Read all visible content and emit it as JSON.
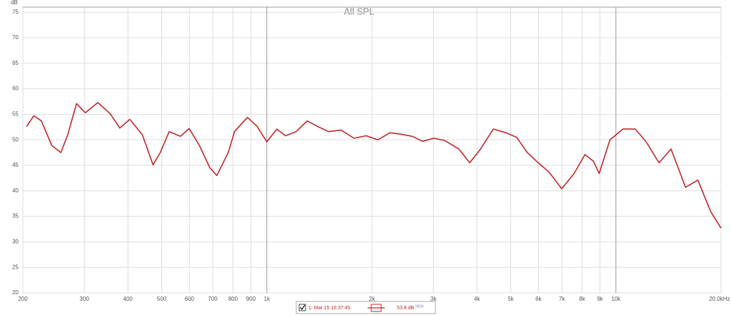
{
  "chart_data": {
    "type": "line",
    "title": "All SPL",
    "y_label": "dB",
    "xscale": "log",
    "grid": true,
    "xlim": [
      200,
      20000
    ],
    "ylim": [
      20,
      76
    ],
    "yticks": [
      20,
      25,
      30,
      35,
      40,
      45,
      50,
      55,
      60,
      65,
      70,
      75
    ],
    "xticks": [
      200,
      300,
      400,
      500,
      600,
      700,
      800,
      900,
      {
        "value": 1000,
        "label": "1k"
      },
      {
        "value": 2000,
        "label": "2k"
      },
      {
        "value": 3000,
        "label": "3k"
      },
      {
        "value": 4000,
        "label": "4k"
      },
      {
        "value": 5000,
        "label": "5k"
      },
      {
        "value": 6000,
        "label": "6k"
      },
      {
        "value": 7000,
        "label": "7k"
      },
      {
        "value": 8000,
        "label": "8k"
      },
      {
        "value": 9000,
        "label": "9k"
      },
      {
        "value": 10000,
        "label": "10k"
      },
      {
        "value": 20000,
        "label": "20.0kHz"
      }
    ],
    "x": [
      205,
      215,
      226,
      242,
      257,
      269,
      285,
      302,
      328,
      356,
      379,
      405,
      440,
      472,
      495,
      525,
      566,
      599,
      641,
      687,
      719,
      775,
      808,
      880,
      936,
      1000,
      1068,
      1131,
      1213,
      1304,
      1400,
      1503,
      1632,
      1777,
      1927,
      2080,
      2255,
      2423,
      2605,
      2798,
      3005,
      3226,
      3549,
      3812,
      4094,
      4456,
      4835,
      5192,
      5575,
      5987,
      6428,
      6996,
      7590,
      8151,
      8621,
      8955,
      9614,
      10470,
      11367,
      12205,
      13292,
      14386,
      15824,
      17168,
      18690,
      20000
    ],
    "series": [
      {
        "name": "1: Mar 15 10:37:45",
        "color": "#c0272d",
        "values": [
          52.6,
          54.7,
          53.7,
          48.9,
          47.5,
          51.0,
          57.1,
          55.3,
          57.3,
          55.1,
          52.3,
          54.0,
          51.0,
          45.1,
          47.5,
          51.6,
          50.7,
          52.2,
          48.9,
          44.5,
          43.0,
          47.5,
          51.6,
          54.4,
          52.7,
          49.6,
          52.1,
          50.8,
          51.6,
          53.7,
          52.6,
          51.6,
          51.9,
          50.3,
          50.8,
          50.0,
          51.4,
          51.1,
          50.7,
          49.7,
          50.3,
          49.9,
          48.2,
          45.5,
          48.2,
          52.1,
          51.4,
          50.5,
          47.5,
          45.5,
          43.7,
          40.4,
          43.4,
          47.1,
          45.8,
          43.4,
          50.0,
          52.1,
          52.1,
          49.6,
          45.5,
          48.2,
          40.7,
          42.1,
          35.9,
          32.7
        ]
      }
    ],
    "legend_value": "53.8 dB",
    "legend_tag": "NEW"
  }
}
